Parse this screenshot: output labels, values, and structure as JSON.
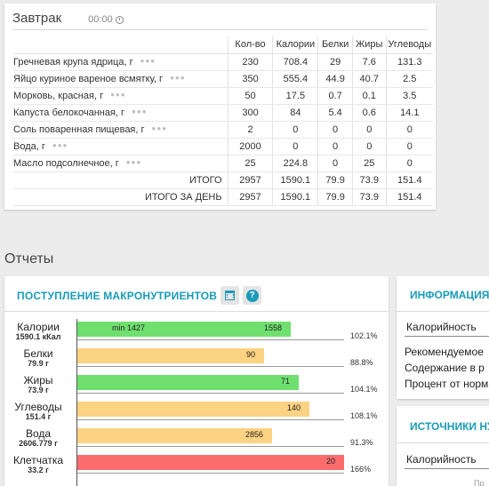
{
  "meal": {
    "title": "Завтрак",
    "time": "00:00",
    "columns": [
      "Кол-во",
      "Калории",
      "Белки",
      "Жиры",
      "Углеводы"
    ],
    "more_icon": "dots-icon",
    "items": [
      {
        "name": "Гречневая крупа ядрица, г",
        "qty": "230",
        "kcal": "708.4",
        "protein": "29",
        "fat": "7.6",
        "carbs": "131.3"
      },
      {
        "name": "Яйцо куриное вареное всмятку, г",
        "qty": "350",
        "kcal": "555.4",
        "protein": "44.9",
        "fat": "40.7",
        "carbs": "2.5"
      },
      {
        "name": "Морковь, красная, г",
        "qty": "50",
        "kcal": "17.5",
        "protein": "0.7",
        "fat": "0.1",
        "carbs": "3.5"
      },
      {
        "name": "Капуста белокочанная, г",
        "qty": "300",
        "kcal": "84",
        "protein": "5.4",
        "fat": "0.6",
        "carbs": "14.1"
      },
      {
        "name": "Соль поваренная пищевая, г",
        "qty": "2",
        "kcal": "0",
        "protein": "0",
        "fat": "0",
        "carbs": "0"
      },
      {
        "name": "Вода, г",
        "qty": "2000",
        "kcal": "0",
        "protein": "0",
        "fat": "0",
        "carbs": "0"
      },
      {
        "name": "Масло подсолнечное, г",
        "qty": "25",
        "kcal": "224.8",
        "protein": "0",
        "fat": "25",
        "carbs": "0"
      }
    ],
    "totals": [
      {
        "label": "ИТОГО",
        "qty": "2957",
        "kcal": "1590.1",
        "protein": "79.9",
        "fat": "73.9",
        "carbs": "151.4"
      },
      {
        "label": "ИТОГО ЗА ДЕНЬ",
        "qty": "2957",
        "kcal": "1590.1",
        "protein": "79.9",
        "fat": "73.9",
        "carbs": "151.4"
      }
    ]
  },
  "reports": {
    "title": "Отчеты",
    "macro": {
      "title": "ПОСТУПЛЕНИЕ МАКРОНУТРИЕНТОВ",
      "calendar_icon": "calendar-icon",
      "help_icon": "help-icon",
      "rows": [
        {
          "name": "Калории",
          "sub": "1590.1 кКал",
          "bar_label": "1558",
          "min_label": "min 1427",
          "percent": "102.1%",
          "fill": 0.8,
          "color": "#6fe06f"
        },
        {
          "name": "Белки",
          "sub": "79.9 г",
          "bar_label": "90",
          "min_label": "",
          "percent": "88.8%",
          "fill": 0.7,
          "color": "#fcd283"
        },
        {
          "name": "Жиры",
          "sub": "73.9 г",
          "bar_label": "71",
          "min_label": "",
          "percent": "104.1%",
          "fill": 0.83,
          "color": "#6fe06f"
        },
        {
          "name": "Углеводы",
          "sub": "151.4 г",
          "bar_label": "140",
          "min_label": "",
          "percent": "108.1%",
          "fill": 0.87,
          "color": "#fcd283"
        },
        {
          "name": "Вода",
          "sub": "2606.779 г",
          "bar_label": "2856",
          "min_label": "",
          "percent": "91.3%",
          "fill": 0.73,
          "color": "#fcd283"
        },
        {
          "name": "Клетчатка",
          "sub": "33.2 г",
          "bar_label": "20",
          "min_label": "",
          "percent": "166%",
          "fill": 1.0,
          "color": "#fb6d6d"
        }
      ]
    },
    "info": {
      "title": "ИНФОРМАЦИЯ О",
      "tab": "Калорийность",
      "lines": [
        "Рекомендуемое",
        "Содержание в р",
        "Процент от норм"
      ]
    },
    "sources": {
      "title": "ИСТОЧНИКИ НУТ",
      "tab": "Калорийность",
      "faint": "Пр"
    }
  }
}
